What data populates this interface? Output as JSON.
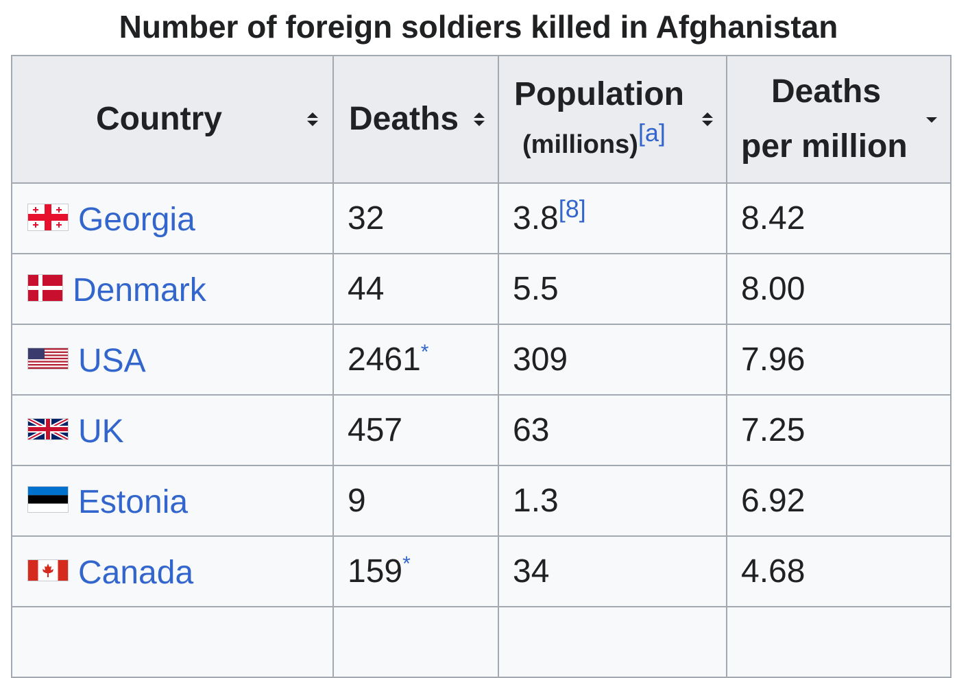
{
  "caption": "Number of foreign soldiers killed in Afghanistan",
  "columns": {
    "country": "Country",
    "deaths": "Deaths",
    "population": "Population",
    "population_unit": "(millions)",
    "population_note": "[a]",
    "deaths_per_million_line1": "Deaths",
    "deaths_per_million_line2": "per million"
  },
  "sort_icons": {
    "country": "sort-both-icon",
    "deaths": "sort-both-icon",
    "population": "sort-both-icon",
    "deaths_per_million": "sort-descending-icon"
  },
  "colors": {
    "link": "#3366cc",
    "header_bg": "#eaecf0",
    "cell_bg": "#f8f9fa",
    "border": "#a2a9b1"
  },
  "rows": [
    {
      "country": "Georgia",
      "flag": "georgia-flag-icon",
      "deaths": "32",
      "deaths_note": "",
      "population": "3.8",
      "population_note": "[8]",
      "per_million": "8.42"
    },
    {
      "country": "Denmark",
      "flag": "denmark-flag-icon",
      "deaths": "44",
      "deaths_note": "",
      "population": "5.5",
      "population_note": "",
      "per_million": "8.00"
    },
    {
      "country": "USA",
      "flag": "usa-flag-icon",
      "deaths": "2461",
      "deaths_note": "*",
      "population": "309",
      "population_note": "",
      "per_million": "7.96"
    },
    {
      "country": "UK",
      "flag": "uk-flag-icon",
      "deaths": "457",
      "deaths_note": "",
      "population": "63",
      "population_note": "",
      "per_million": "7.25"
    },
    {
      "country": "Estonia",
      "flag": "estonia-flag-icon",
      "deaths": "9",
      "deaths_note": "",
      "population": "1.3",
      "population_note": "",
      "per_million": "6.92"
    },
    {
      "country": "Canada",
      "flag": "canada-flag-icon",
      "deaths": "159",
      "deaths_note": "*",
      "population": "34",
      "population_note": "",
      "per_million": "4.68"
    }
  ]
}
